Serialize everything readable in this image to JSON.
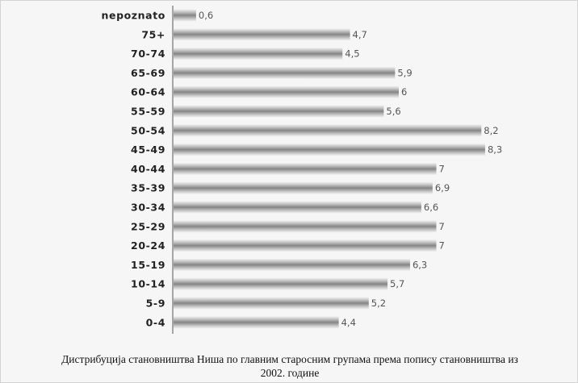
{
  "chart_data": {
    "type": "bar",
    "orientation": "horizontal",
    "categories": [
      "nepoznato",
      "75+",
      "70-74",
      "65-69",
      "60-64",
      "55-59",
      "50-54",
      "45-49",
      "40-44",
      "35-39",
      "30-34",
      "25-29",
      "20-24",
      "15-19",
      "10-14",
      "5-9",
      "0-4"
    ],
    "values": [
      0.6,
      4.7,
      4.5,
      5.9,
      6,
      5.6,
      8.2,
      8.3,
      7,
      6.9,
      6.6,
      7,
      7,
      6.3,
      5.7,
      5.2,
      4.4
    ],
    "value_labels": [
      "0,6",
      "4,7",
      "4,5",
      "5,9",
      "6",
      "5,6",
      "8,2",
      "8,3",
      "7",
      "6,9",
      "6,6",
      "7",
      "7",
      "6,3",
      "5,7",
      "5,2",
      "4,4"
    ],
    "xlim": [
      0,
      10
    ],
    "grid": false,
    "legend": "none",
    "bar_color": "#b4b4b4"
  },
  "caption": {
    "line1": "Дистрибуција становништва Ниша по главним старосним групама према попису становништва из",
    "line2": "2002. године"
  }
}
